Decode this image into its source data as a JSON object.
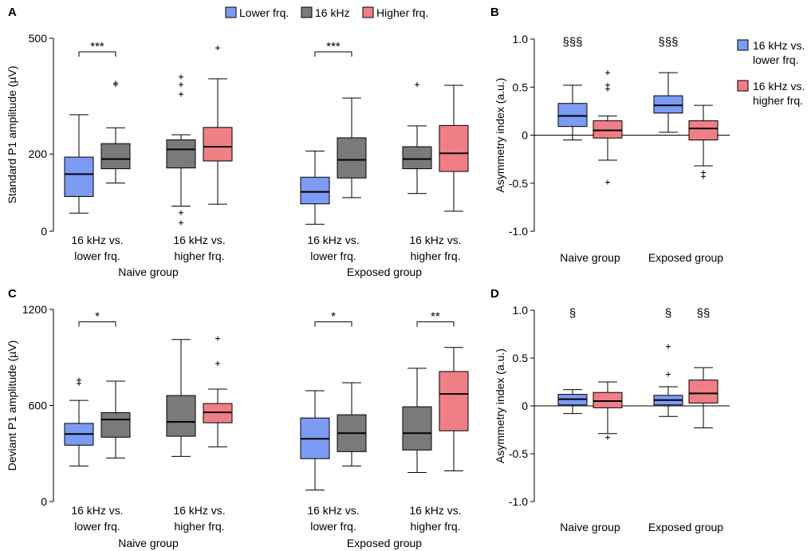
{
  "legend_top": [
    {
      "label": "Lower frq.",
      "color": "#7b9cf2"
    },
    {
      "label": "16 kHz",
      "color": "#7a7a7a"
    },
    {
      "label": "Higher frq.",
      "color": "#ef7f84"
    }
  ],
  "legend_right": [
    {
      "label": "16 kHz vs.",
      "label2": "lower frq.",
      "color": "#7b9cf2"
    },
    {
      "label": "16 kHz vs.",
      "label2": "higher frq.",
      "color": "#ef7f84"
    }
  ],
  "chart_data": [
    {
      "panel": "A",
      "type": "box",
      "ylabel": "Standard P1 amplitude (µV)",
      "ylim": [
        0,
        500
      ],
      "yticks": [
        0,
        200,
        500
      ],
      "categories": [
        {
          "line1": "16 kHz vs.",
          "line2": "lower frq."
        },
        {
          "line1": "16 kHz vs.",
          "line2": "higher frq."
        },
        {
          "line1": "16 kHz vs.",
          "line2": "lower frq."
        },
        {
          "line1": "16 kHz vs.",
          "line2": "higher frq."
        }
      ],
      "groups": [
        "Naive group",
        "Exposed group"
      ],
      "boxes": [
        {
          "cat": 0,
          "side": 0,
          "color": "#7b9cf2",
          "min": 47,
          "q1": 90,
          "median": 148,
          "q3": 192,
          "max": 302,
          "outliers": []
        },
        {
          "cat": 0,
          "side": 1,
          "color": "#7a7a7a",
          "min": 125,
          "q1": 162,
          "median": 187,
          "q3": 227,
          "max": 268,
          "outliers": [
            380,
            384
          ]
        },
        {
          "cat": 1,
          "side": 0,
          "color": "#7a7a7a",
          "min": 65,
          "q1": 164,
          "median": 212,
          "q3": 237,
          "max": 250,
          "outliers": [
            22,
            48,
            355,
            380,
            400
          ]
        },
        {
          "cat": 1,
          "side": 1,
          "color": "#ef7f84",
          "min": 70,
          "q1": 182,
          "median": 219,
          "q3": 269,
          "max": 395,
          "outliers": [
            475
          ]
        },
        {
          "cat": 2,
          "side": 0,
          "color": "#7b9cf2",
          "min": 18,
          "q1": 71,
          "median": 102,
          "q3": 140,
          "max": 208,
          "outliers": []
        },
        {
          "cat": 2,
          "side": 1,
          "color": "#7a7a7a",
          "min": 87,
          "q1": 138,
          "median": 185,
          "q3": 242,
          "max": 345,
          "outliers": []
        },
        {
          "cat": 3,
          "side": 0,
          "color": "#7a7a7a",
          "min": 98,
          "q1": 162,
          "median": 187,
          "q3": 219,
          "max": 273,
          "outliers": [
            380
          ]
        },
        {
          "cat": 3,
          "side": 1,
          "color": "#ef7f84",
          "min": 52,
          "q1": 155,
          "median": 202,
          "q3": 274,
          "max": 378,
          "outliers": []
        }
      ],
      "significance": [
        {
          "cat": 0,
          "value": 465,
          "label": "***"
        },
        {
          "cat": 2,
          "value": 465,
          "label": "***"
        }
      ]
    },
    {
      "panel": "B",
      "type": "box",
      "ylabel": "Asymmetry index (a.u.)",
      "ylim": [
        -1.0,
        1.0
      ],
      "yticks": [
        -1.0,
        -0.5,
        0,
        0.5,
        1.0
      ],
      "yticklabels": [
        "-1.0",
        "-0.5",
        "0",
        "0.5",
        "1.0"
      ],
      "groups": [
        "Naive group",
        "Exposed group"
      ],
      "boxes": [
        {
          "group": 0,
          "side": 0,
          "color": "#7b9cf2",
          "min": -0.05,
          "q1": 0.09,
          "median": 0.2,
          "q3": 0.33,
          "max": 0.52,
          "outliers": []
        },
        {
          "group": 0,
          "side": 1,
          "color": "#ef7f84",
          "min": -0.26,
          "q1": -0.03,
          "median": 0.05,
          "q3": 0.15,
          "max": 0.2,
          "outliers": [
            -0.49,
            0.48,
            0.52,
            0.65
          ]
        },
        {
          "group": 1,
          "side": 0,
          "color": "#7b9cf2",
          "min": 0.03,
          "q1": 0.23,
          "median": 0.31,
          "q3": 0.41,
          "max": 0.65,
          "outliers": []
        },
        {
          "group": 1,
          "side": 1,
          "color": "#ef7f84",
          "min": -0.32,
          "q1": -0.05,
          "median": 0.07,
          "q3": 0.15,
          "max": 0.31,
          "outliers": [
            -0.39,
            -0.43
          ]
        }
      ],
      "significance": [
        {
          "group": 0,
          "side": 0,
          "value": 0.93,
          "label": "§§§"
        },
        {
          "group": 1,
          "side": 0,
          "value": 0.93,
          "label": "§§§"
        }
      ]
    },
    {
      "panel": "C",
      "type": "box",
      "ylabel": "Deviant P1 amplitude (µV)",
      "ylim": [
        0,
        1200
      ],
      "yticks": [
        0,
        600,
        1200
      ],
      "categories": [
        {
          "line1": "16 kHz vs.",
          "line2": "lower frq."
        },
        {
          "line1": "16 kHz vs.",
          "line2": "higher frq."
        },
        {
          "line1": "16 kHz vs.",
          "line2": "lower frq."
        },
        {
          "line1": "16 kHz vs.",
          "line2": "higher frq."
        }
      ],
      "groups": [
        "Naive group",
        "Exposed group"
      ],
      "boxes": [
        {
          "cat": 0,
          "side": 0,
          "color": "#7b9cf2",
          "min": 222,
          "q1": 352,
          "median": 422,
          "q3": 488,
          "max": 632,
          "outliers": [
            738,
            758
          ]
        },
        {
          "cat": 0,
          "side": 1,
          "color": "#7a7a7a",
          "min": 272,
          "q1": 402,
          "median": 512,
          "q3": 555,
          "max": 752,
          "outliers": []
        },
        {
          "cat": 1,
          "side": 0,
          "color": "#7a7a7a",
          "min": 282,
          "q1": 408,
          "median": 497,
          "q3": 662,
          "max": 1012,
          "outliers": []
        },
        {
          "cat": 1,
          "side": 1,
          "color": "#ef7f84",
          "min": 342,
          "q1": 492,
          "median": 557,
          "q3": 612,
          "max": 702,
          "outliers": [
            862,
            1018
          ]
        },
        {
          "cat": 2,
          "side": 0,
          "color": "#7b9cf2",
          "min": 72,
          "q1": 268,
          "median": 392,
          "q3": 522,
          "max": 692,
          "outliers": []
        },
        {
          "cat": 2,
          "side": 1,
          "color": "#7a7a7a",
          "min": 222,
          "q1": 312,
          "median": 427,
          "q3": 542,
          "max": 742,
          "outliers": []
        },
        {
          "cat": 3,
          "side": 0,
          "color": "#7a7a7a",
          "min": 182,
          "q1": 322,
          "median": 427,
          "q3": 592,
          "max": 832,
          "outliers": []
        },
        {
          "cat": 3,
          "side": 1,
          "color": "#ef7f84",
          "min": 192,
          "q1": 442,
          "median": 672,
          "q3": 812,
          "max": 962,
          "outliers": []
        }
      ],
      "significance": [
        {
          "cat": 0,
          "value": 1122,
          "label": "*"
        },
        {
          "cat": 2,
          "value": 1122,
          "label": "*"
        },
        {
          "cat": 3,
          "value": 1122,
          "label": "**"
        }
      ]
    },
    {
      "panel": "D",
      "type": "box",
      "ylabel": "Asymmetry index (a.u.)",
      "ylim": [
        -1.0,
        1.0
      ],
      "yticks": [
        -1.0,
        -0.5,
        0,
        0.5,
        1.0
      ],
      "yticklabels": [
        "-1.0",
        "-0.5",
        "0",
        "0.5",
        "1.0"
      ],
      "groups": [
        "Naive group",
        "Exposed group"
      ],
      "boxes": [
        {
          "group": 0,
          "side": 0,
          "color": "#7b9cf2",
          "min": -0.08,
          "q1": 0.01,
          "median": 0.07,
          "q3": 0.12,
          "max": 0.17,
          "outliers": []
        },
        {
          "group": 0,
          "side": 1,
          "color": "#ef7f84",
          "min": -0.29,
          "q1": -0.02,
          "median": 0.05,
          "q3": 0.14,
          "max": 0.25,
          "outliers": [
            -0.33
          ]
        },
        {
          "group": 1,
          "side": 0,
          "color": "#7b9cf2",
          "min": -0.11,
          "q1": 0.01,
          "median": 0.06,
          "q3": 0.11,
          "max": 0.2,
          "outliers": [
            0.33,
            0.62
          ]
        },
        {
          "group": 1,
          "side": 1,
          "color": "#ef7f84",
          "min": -0.23,
          "q1": 0.03,
          "median": 0.13,
          "q3": 0.27,
          "max": 0.4,
          "outliers": []
        }
      ],
      "significance": [
        {
          "group": 0,
          "side": 0,
          "value": 0.93,
          "label": "§"
        },
        {
          "group": 1,
          "side": 0,
          "value": 0.93,
          "label": "§"
        },
        {
          "group": 1,
          "side": 1,
          "value": 0.93,
          "label": "§§"
        }
      ]
    }
  ]
}
